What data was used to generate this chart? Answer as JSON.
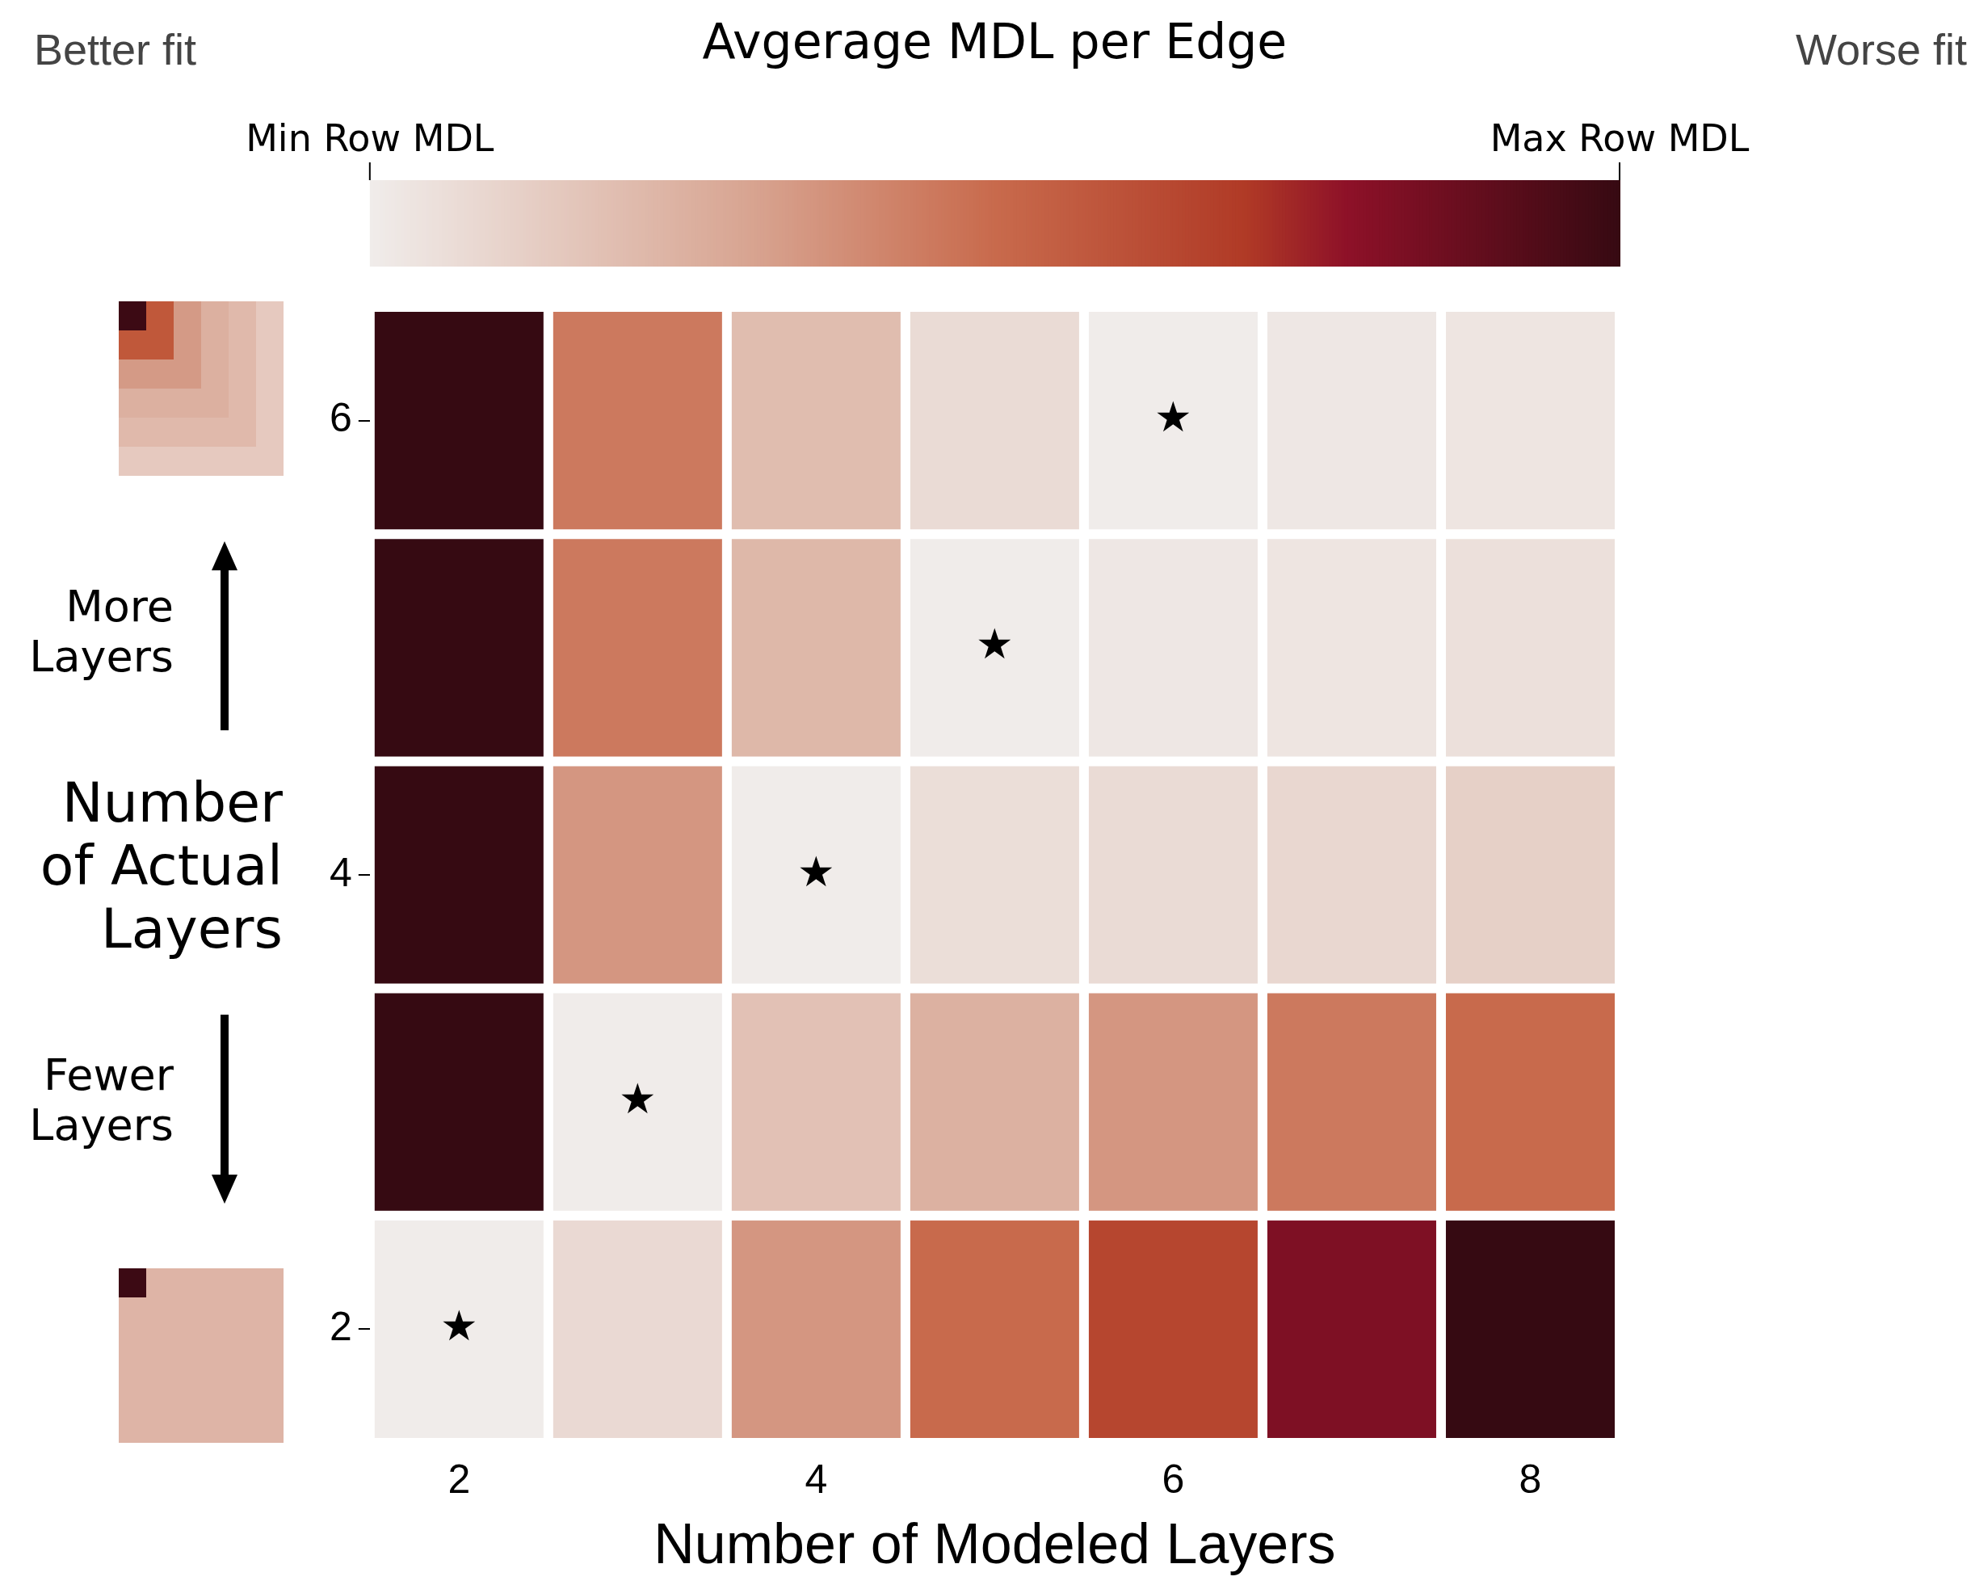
{
  "chart_data": {
    "type": "heatmap",
    "title": "Avgerage MDL per Edge",
    "xlabel": "Number of Modeled Layers",
    "ylabel": "Number of Actual Layers",
    "categories": [
      "2",
      null,
      "4",
      null,
      "6",
      null,
      "8"
    ],
    "y_categories": [
      "6",
      null,
      "4",
      null,
      "2"
    ],
    "cells": [
      [
        1.0,
        0.45,
        0.2,
        0.07,
        0.0,
        0.02,
        0.03
      ],
      [
        1.0,
        0.45,
        0.22,
        0.0,
        0.02,
        0.03,
        0.05
      ],
      [
        1.0,
        0.35,
        0.0,
        0.06,
        0.07,
        0.09,
        0.12
      ],
      [
        1.0,
        0.0,
        0.18,
        0.25,
        0.35,
        0.45,
        0.5
      ],
      [
        0.0,
        0.08,
        0.35,
        0.5,
        0.65,
        0.82,
        1.0
      ]
    ],
    "cell_labels": [
      [
        null,
        null,
        null,
        null,
        "★",
        null,
        null
      ],
      [
        null,
        null,
        null,
        "★",
        null,
        null,
        null
      ],
      [
        null,
        null,
        "★",
        null,
        null,
        null,
        null
      ],
      [
        null,
        "★",
        null,
        null,
        null,
        null,
        null
      ],
      [
        "★",
        null,
        null,
        null,
        null,
        null,
        null
      ]
    ],
    "clim": [
      0,
      1
    ],
    "cticks": [
      {
        "value": 0,
        "label": "Min Row MDL"
      },
      {
        "value": 1,
        "label": "Max Row MDL"
      }
    ],
    "annotations": [
      "Better fit",
      "Worse fit",
      "More\nLayers",
      "Fewer\nLayers"
    ],
    "legend": false
  }
}
